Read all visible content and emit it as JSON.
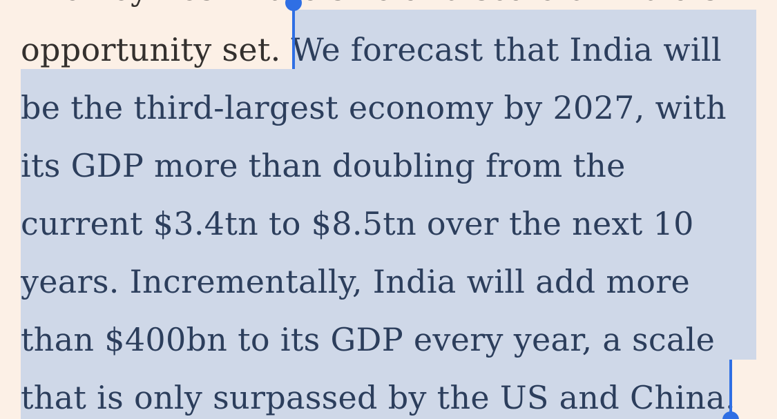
{
  "article": {
    "partial_top_line": "The key lies in the size and scale of India’s",
    "line1_unselected": "opportunity set. ",
    "line1_selected": "We forecast that India will",
    "selected_lines": [
      "be the third-largest economy by 2027, with",
      "its GDP more than doubling from the",
      "current $3.4tn to $8.5tn over the next 10",
      "years. Incrementally, India will add more",
      "than $400bn to its GDP every year, a scale",
      "that is only surpassed by the US and China."
    ]
  },
  "colors": {
    "page_background": "#fcf0e6",
    "selection_highlight": "#cfd8e8",
    "selection_handle": "#2f6fe4",
    "body_text": "#33302e",
    "selected_text": "#2c3e5c"
  },
  "icons": {
    "selection_start": "selection-start-handle-icon",
    "selection_end": "selection-end-handle-icon"
  }
}
